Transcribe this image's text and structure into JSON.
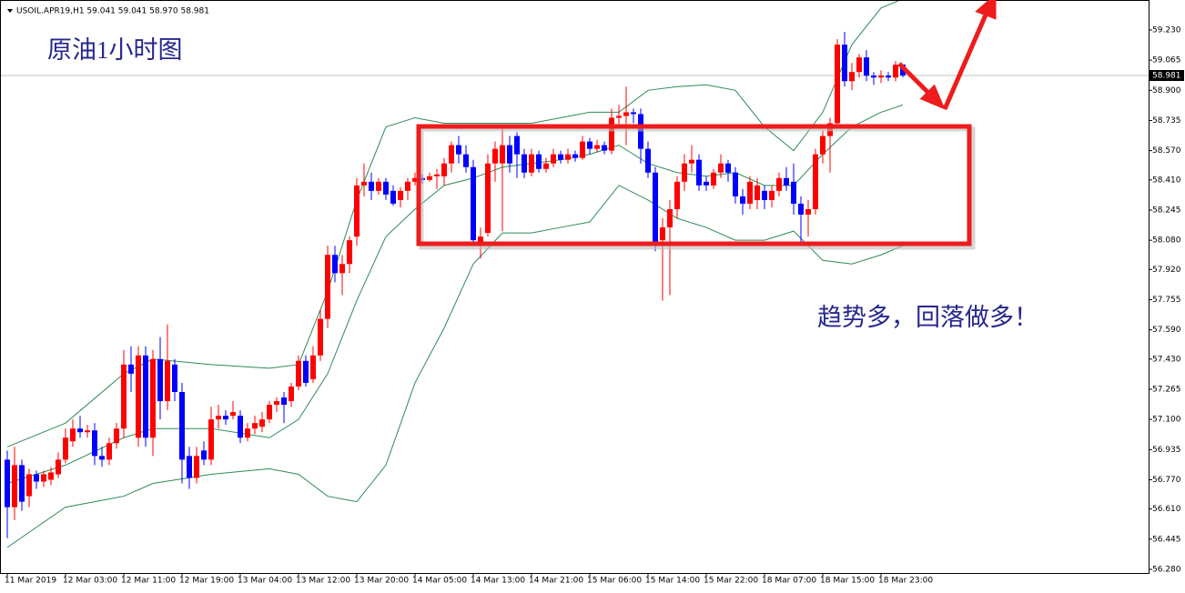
{
  "chart_data": {
    "type": "candlestick",
    "header": "USOIL.APR19,H1  59.041 59.041 58.970 58.981",
    "title": "原油1小时图",
    "annotation": "趋势多，回落做多！",
    "categories": [
      "11 Mar 2019",
      null,
      null,
      null,
      null,
      null,
      null,
      null,
      "12 Mar 03:00",
      null,
      null,
      null,
      null,
      null,
      null,
      null,
      "12 Mar 11:00",
      null,
      null,
      null,
      null,
      null,
      null,
      null,
      "12 Mar 19:00",
      null,
      null,
      null,
      null,
      null,
      null,
      null,
      "13 Mar 04:00",
      null,
      null,
      null,
      null,
      null,
      null,
      null,
      "13 Mar 12:00",
      null,
      null,
      null,
      null,
      null,
      null,
      null,
      "13 Mar 20:00",
      null,
      null,
      null,
      null,
      null,
      null,
      null,
      "14 Mar 05:00",
      null,
      null,
      null,
      null,
      null,
      null,
      null,
      "14 Mar 13:00",
      null,
      null,
      null,
      null,
      null,
      null,
      null,
      "14 Mar 21:00",
      null,
      null,
      null,
      null,
      null,
      null,
      null,
      "15 Mar 06:00",
      null,
      null,
      null,
      null,
      null,
      null,
      null,
      "15 Mar 14:00",
      null,
      null,
      null,
      null,
      null,
      null,
      null,
      "15 Mar 22:00",
      null,
      null,
      null,
      null,
      null,
      null,
      null,
      "18 Mar 07:00",
      null,
      null,
      null,
      null,
      null,
      null,
      null,
      "18 Mar 15:00",
      null,
      null,
      null,
      null,
      null,
      null,
      null,
      "18 Mar 23:00",
      null,
      null,
      null
    ],
    "open": [
      56.88,
      56.62,
      56.85,
      56.68,
      56.8,
      56.76,
      56.77,
      56.8,
      56.88,
      56.98,
      57.05,
      57.03,
      57.04,
      56.9,
      56.88,
      56.97,
      57.05,
      57.4,
      57.0,
      57.45,
      57.0,
      57.43,
      57.2,
      57.4,
      57.25,
      56.9,
      56.78,
      56.93,
      56.88,
      57.1,
      57.12,
      57.12,
      57.12,
      57.0,
      57.05,
      57.06,
      57.1,
      57.18,
      57.22,
      57.2,
      57.28,
      57.42,
      57.32,
      57.45,
      57.65,
      58.0,
      57.9,
      57.95,
      58.1,
      58.38,
      58.4,
      58.35,
      58.4,
      58.35,
      58.3,
      58.35,
      58.4,
      58.42,
      58.41,
      58.43,
      58.43,
      58.5,
      58.6,
      58.55,
      58.48,
      58.05,
      58.12,
      58.5,
      58.5,
      58.6,
      58.65,
      58.55,
      58.45,
      58.55,
      58.47,
      58.5,
      58.55,
      58.52,
      58.55,
      58.53,
      58.62,
      58.58,
      58.6,
      58.57,
      58.75,
      58.76,
      58.78,
      58.77,
      58.58,
      58.45,
      58.08,
      58.15,
      58.25,
      58.4,
      58.5,
      58.52,
      58.4,
      58.38,
      58.45,
      58.5,
      58.45,
      58.32,
      58.28,
      58.3,
      58.35,
      58.3,
      58.35,
      58.42,
      58.4,
      58.28,
      58.22,
      58.25,
      58.55,
      58.65,
      58.72,
      59.15,
      58.95,
      59.0,
      59.08,
      58.98,
      58.97,
      58.98,
      58.97,
      59.041
    ],
    "high": [
      56.93,
      56.95,
      56.88,
      56.83,
      56.82,
      56.82,
      56.84,
      56.92,
      57.05,
      57.1,
      57.12,
      57.07,
      57.08,
      56.95,
      57.0,
      57.08,
      57.48,
      57.5,
      57.5,
      57.5,
      57.48,
      57.55,
      57.62,
      57.43,
      57.3,
      56.95,
      56.95,
      56.98,
      57.17,
      57.18,
      57.15,
      57.2,
      57.15,
      57.08,
      57.12,
      57.14,
      57.2,
      57.22,
      57.25,
      57.3,
      57.45,
      57.45,
      57.5,
      57.7,
      58.05,
      58.05,
      58.0,
      58.1,
      58.42,
      58.5,
      58.45,
      58.42,
      58.42,
      58.38,
      58.37,
      58.42,
      58.45,
      58.44,
      58.45,
      58.47,
      58.53,
      58.62,
      58.65,
      58.6,
      58.52,
      58.15,
      58.55,
      58.62,
      58.7,
      58.65,
      58.67,
      58.58,
      58.58,
      58.57,
      58.53,
      58.58,
      58.57,
      58.58,
      58.57,
      58.65,
      58.64,
      58.63,
      58.62,
      58.8,
      58.82,
      58.92,
      58.8,
      58.8,
      58.62,
      58.48,
      58.2,
      58.3,
      58.43,
      58.55,
      58.6,
      58.55,
      58.43,
      58.47,
      58.55,
      58.52,
      58.48,
      58.36,
      58.43,
      58.42,
      58.38,
      58.38,
      58.45,
      58.48,
      58.5,
      58.32,
      58.3,
      58.58,
      58.68,
      58.75,
      59.18,
      59.22,
      59.05,
      59.1,
      59.12,
      59.0,
      59.01,
      59.0,
      59.06,
      59.041
    ],
    "low": [
      56.45,
      56.55,
      56.6,
      56.62,
      56.72,
      56.73,
      56.74,
      56.78,
      56.86,
      56.95,
      57.0,
      57.0,
      56.85,
      56.84,
      56.85,
      56.94,
      57.0,
      57.25,
      56.95,
      56.95,
      56.9,
      57.1,
      57.15,
      57.2,
      56.75,
      56.72,
      56.75,
      56.85,
      56.85,
      57.05,
      57.07,
      57.1,
      56.97,
      56.98,
      57.02,
      57.03,
      57.08,
      57.14,
      57.08,
      57.17,
      57.26,
      57.28,
      57.3,
      57.42,
      57.6,
      57.85,
      57.78,
      57.9,
      58.05,
      58.32,
      58.3,
      58.33,
      58.3,
      58.27,
      58.26,
      58.3,
      58.38,
      58.39,
      58.4,
      58.36,
      58.38,
      58.45,
      58.5,
      58.45,
      58.05,
      57.98,
      58.1,
      58.4,
      58.13,
      58.45,
      58.42,
      58.42,
      58.43,
      58.45,
      58.45,
      58.48,
      58.5,
      58.5,
      58.51,
      58.52,
      58.55,
      58.56,
      58.55,
      58.55,
      58.7,
      58.6,
      58.72,
      58.5,
      58.42,
      58.02,
      57.75,
      57.78,
      58.2,
      58.35,
      58.45,
      58.35,
      58.35,
      58.36,
      58.42,
      58.4,
      58.28,
      58.22,
      58.25,
      58.25,
      58.25,
      58.26,
      58.32,
      58.35,
      58.22,
      58.05,
      58.1,
      58.22,
      58.5,
      58.45,
      58.7,
      58.92,
      58.9,
      58.97,
      58.95,
      58.93,
      58.94,
      58.95,
      58.95,
      58.97
    ],
    "close": [
      56.62,
      56.85,
      56.65,
      56.8,
      56.76,
      56.8,
      56.81,
      56.88,
      57.0,
      57.05,
      57.03,
      57.04,
      56.9,
      56.88,
      56.97,
      57.05,
      57.4,
      57.35,
      57.45,
      57.0,
      57.43,
      57.2,
      57.42,
      57.25,
      56.88,
      56.78,
      56.9,
      56.88,
      57.1,
      57.12,
      57.1,
      57.14,
      57.0,
      57.05,
      57.08,
      57.1,
      57.18,
      57.2,
      57.18,
      57.28,
      57.42,
      57.3,
      57.45,
      57.65,
      58.0,
      57.9,
      57.95,
      58.08,
      58.38,
      58.4,
      58.35,
      58.4,
      58.33,
      58.28,
      58.35,
      58.4,
      58.42,
      58.41,
      58.43,
      58.44,
      58.5,
      58.6,
      58.55,
      58.48,
      58.08,
      58.1,
      58.5,
      58.58,
      58.6,
      58.5,
      58.55,
      58.45,
      58.55,
      58.47,
      58.5,
      58.55,
      58.52,
      58.55,
      58.53,
      58.62,
      58.58,
      58.6,
      58.57,
      58.75,
      58.76,
      58.78,
      58.77,
      58.58,
      58.45,
      58.05,
      58.15,
      58.25,
      58.4,
      58.5,
      58.52,
      58.38,
      58.38,
      58.45,
      58.5,
      58.45,
      58.32,
      58.28,
      58.4,
      58.38,
      58.3,
      58.35,
      58.42,
      58.38,
      58.28,
      58.22,
      58.25,
      58.55,
      58.65,
      58.72,
      59.15,
      58.95,
      59.0,
      59.08,
      58.98,
      58.97,
      58.98,
      58.97,
      59.04,
      58.981
    ],
    "up_color": "#ff0000",
    "down_color": "#0000ff",
    "bands": {
      "color": "#2e8b57",
      "x": [
        0,
        8,
        16,
        20,
        28,
        36,
        40,
        44,
        48,
        52,
        56,
        60,
        64,
        68,
        72,
        76,
        80,
        84,
        88,
        92,
        96,
        100,
        104,
        108,
        112,
        116,
        120,
        123
      ],
      "upper": [
        56.95,
        57.08,
        57.35,
        57.43,
        57.4,
        57.38,
        57.4,
        57.8,
        58.3,
        58.7,
        58.75,
        58.72,
        58.72,
        58.72,
        58.72,
        58.75,
        58.78,
        58.78,
        58.9,
        58.92,
        58.93,
        58.9,
        58.7,
        58.57,
        58.78,
        59.15,
        59.35,
        59.4
      ],
      "middle": [
        56.75,
        56.85,
        57.0,
        57.05,
        57.05,
        57.0,
        57.1,
        57.35,
        57.75,
        58.1,
        58.25,
        58.38,
        58.42,
        58.48,
        58.5,
        58.52,
        58.55,
        58.6,
        58.5,
        58.45,
        58.43,
        58.45,
        58.38,
        58.38,
        58.55,
        58.7,
        58.78,
        58.82
      ],
      "lower": [
        56.4,
        56.62,
        56.68,
        56.75,
        56.8,
        56.83,
        56.8,
        56.68,
        56.65,
        56.85,
        57.3,
        57.6,
        57.95,
        58.12,
        58.12,
        58.15,
        58.18,
        58.38,
        58.3,
        58.2,
        58.15,
        58.08,
        58.08,
        58.13,
        57.97,
        57.95,
        58.0,
        58.05
      ]
    },
    "current_price": 58.981,
    "ylim": [
      56.26,
      59.394
    ],
    "yticks": [
      {
        "value": 59.23,
        "label": "59.230"
      },
      59.065,
      {
        "value": 58.9,
        "label": "58.900"
      },
      58.735,
      {
        "value": 58.57,
        "label": "58.570"
      },
      {
        "value": 58.41,
        "label": "58.410"
      },
      58.245,
      {
        "value": 58.08,
        "label": "58.080"
      },
      {
        "value": 57.92,
        "label": "57.920"
      },
      57.755,
      {
        "value": 57.59,
        "label": "57.590"
      },
      {
        "value": 57.43,
        "label": "57.430"
      },
      57.265,
      {
        "value": 57.1,
        "label": "57.100"
      },
      56.935,
      {
        "value": 56.77,
        "label": "56.770"
      },
      {
        "value": 56.61,
        "label": "56.610"
      },
      56.445,
      {
        "value": 56.28,
        "label": "56.280"
      }
    ]
  }
}
